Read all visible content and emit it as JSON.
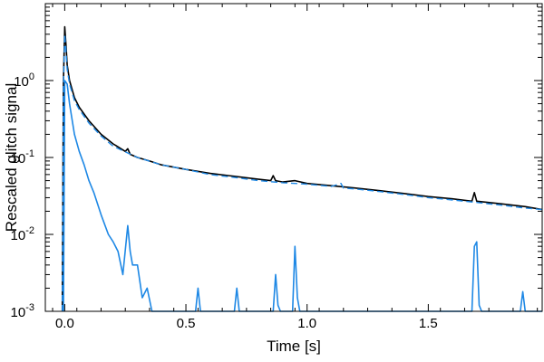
{
  "chart_data": {
    "type": "line",
    "title": "",
    "xlabel": "Time [s]",
    "ylabel": "Rescaled glitch signal",
    "xlim": [
      -0.08,
      1.97
    ],
    "ylim": [
      0.001,
      10
    ],
    "yscale": "log",
    "grid": false,
    "legend": "none",
    "x_ticks": [
      {
        "value": 0.0,
        "label": "0.0"
      },
      {
        "value": 0.5,
        "label": "0.5"
      },
      {
        "value": 1.0,
        "label": "1.0"
      },
      {
        "value": 1.5,
        "label": "1.5"
      }
    ],
    "y_ticks": [
      {
        "value": 0.001,
        "base": "10",
        "exp": "-3"
      },
      {
        "value": 0.01,
        "base": "10",
        "exp": "-2"
      },
      {
        "value": 0.1,
        "base": "10",
        "exp": "-1"
      },
      {
        "value": 1,
        "base": "10",
        "exp": "0"
      }
    ],
    "series": [
      {
        "color": "#000000",
        "style": "solid",
        "x": [
          -0.01,
          -0.005,
          0.0,
          0.005,
          0.01,
          0.02,
          0.04,
          0.06,
          0.1,
          0.15,
          0.2,
          0.25,
          0.26,
          0.27,
          0.3,
          0.35,
          0.4,
          0.5,
          0.6,
          0.7,
          0.8,
          0.85,
          0.86,
          0.87,
          0.9,
          0.95,
          1.0,
          1.1,
          1.2,
          1.3,
          1.4,
          1.5,
          1.6,
          1.68,
          1.69,
          1.7,
          1.8,
          1.9,
          1.97
        ],
        "y": [
          0.001,
          1.0,
          5.0,
          3.0,
          1.6,
          1.0,
          0.6,
          0.45,
          0.3,
          0.2,
          0.15,
          0.12,
          0.13,
          0.11,
          0.1,
          0.09,
          0.08,
          0.07,
          0.062,
          0.057,
          0.052,
          0.05,
          0.058,
          0.05,
          0.048,
          0.05,
          0.046,
          0.043,
          0.04,
          0.037,
          0.034,
          0.031,
          0.029,
          0.027,
          0.035,
          0.027,
          0.025,
          0.023,
          0.021
        ]
      },
      {
        "color": "#1E88E5",
        "style": "dashed",
        "x": [
          -0.01,
          -0.005,
          0.0,
          0.005,
          0.01,
          0.02,
          0.04,
          0.06,
          0.1,
          0.15,
          0.2,
          0.3,
          0.4,
          0.5,
          0.6,
          0.7,
          0.8,
          0.9,
          1.0,
          1.1,
          1.14,
          1.15,
          1.2,
          1.3,
          1.4,
          1.5,
          1.6,
          1.7,
          1.8,
          1.9,
          1.97
        ],
        "y": [
          0.001,
          0.8,
          4.0,
          2.5,
          1.4,
          0.9,
          0.55,
          0.42,
          0.28,
          0.19,
          0.14,
          0.1,
          0.08,
          0.07,
          0.06,
          0.055,
          0.05,
          0.047,
          0.045,
          0.042,
          0.046,
          0.04,
          0.039,
          0.036,
          0.033,
          0.03,
          0.028,
          0.026,
          0.024,
          0.022,
          0.021
        ]
      },
      {
        "color": "#1E88E5",
        "style": "solid",
        "x": [
          -0.005,
          0.0,
          0.01,
          0.02,
          0.04,
          0.06,
          0.08,
          0.1,
          0.12,
          0.15,
          0.18,
          0.2,
          0.22,
          0.24,
          0.26,
          0.27,
          0.28,
          0.3,
          0.32,
          0.34,
          0.36,
          0.4,
          0.45,
          0.5,
          0.54,
          0.55,
          0.56,
          0.6,
          0.7,
          0.71,
          0.72,
          0.8,
          0.86,
          0.87,
          0.88,
          0.89,
          0.9,
          0.94,
          0.95,
          0.96,
          0.97,
          1.0,
          1.1,
          1.2,
          1.3,
          1.4,
          1.5,
          1.6,
          1.68,
          1.69,
          1.7,
          1.71,
          1.72,
          1.8,
          1.88,
          1.89,
          1.9,
          1.95,
          1.97
        ],
        "y": [
          0.001,
          1.0,
          0.9,
          0.5,
          0.2,
          0.12,
          0.08,
          0.05,
          0.035,
          0.018,
          0.01,
          0.008,
          0.006,
          0.003,
          0.013,
          0.006,
          0.004,
          0.004,
          0.0015,
          0.002,
          0.001,
          0.001,
          0.001,
          0.001,
          0.001,
          0.002,
          0.001,
          0.001,
          0.001,
          0.002,
          0.001,
          0.001,
          0.001,
          0.003,
          0.0012,
          0.001,
          0.001,
          0.001,
          0.007,
          0.0015,
          0.001,
          0.001,
          0.001,
          0.001,
          0.001,
          0.001,
          0.001,
          0.001,
          0.001,
          0.007,
          0.008,
          0.0012,
          0.001,
          0.001,
          0.001,
          0.0018,
          0.001,
          0.001,
          0.001
        ]
      }
    ]
  }
}
